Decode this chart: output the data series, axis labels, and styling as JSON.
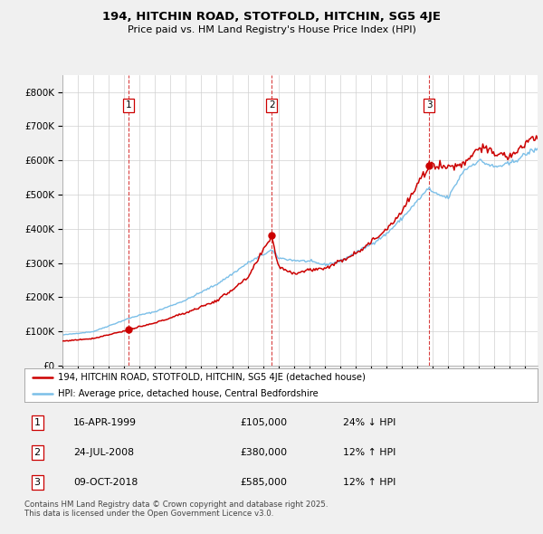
{
  "title": "194, HITCHIN ROAD, STOTFOLD, HITCHIN, SG5 4JE",
  "subtitle": "Price paid vs. HM Land Registry's House Price Index (HPI)",
  "legend_line1": "194, HITCHIN ROAD, STOTFOLD, HITCHIN, SG5 4JE (detached house)",
  "legend_line2": "HPI: Average price, detached house, Central Bedfordshire",
  "footer": "Contains HM Land Registry data © Crown copyright and database right 2025.\nThis data is licensed under the Open Government Licence v3.0.",
  "transactions": [
    {
      "num": 1,
      "date": "16-APR-1999",
      "price": 105000,
      "hpi_rel": "24% ↓ HPI",
      "year": 1999.29
    },
    {
      "num": 2,
      "date": "24-JUL-2008",
      "price": 380000,
      "hpi_rel": "12% ↑ HPI",
      "year": 2008.56
    },
    {
      "num": 3,
      "date": "09-OCT-2018",
      "price": 585000,
      "hpi_rel": "12% ↑ HPI",
      "year": 2018.77
    }
  ],
  "hpi_color": "#7bbfe8",
  "price_color": "#cc0000",
  "vline_color": "#cc0000",
  "background_color": "#f0f0f0",
  "plot_bg_color": "#ffffff",
  "ylim": [
    0,
    850000
  ],
  "xlim_start": 1995.0,
  "xlim_end": 2025.8,
  "hpi_anchors_t": [
    1995,
    1997,
    1999.29,
    2000,
    2001,
    2002,
    2003,
    2004,
    2005,
    2006,
    2007,
    2008.56,
    2009,
    2010,
    2011,
    2012,
    2013,
    2014,
    2015,
    2016,
    2017,
    2018.77,
    2019,
    2020,
    2020.5,
    2021,
    2022,
    2023,
    2024,
    2025.5
  ],
  "hpi_anchors_v": [
    90000,
    100000,
    138000,
    148000,
    158000,
    175000,
    192000,
    215000,
    238000,
    268000,
    300000,
    338000,
    315000,
    308000,
    305000,
    295000,
    305000,
    330000,
    355000,
    385000,
    430000,
    520000,
    505000,
    490000,
    530000,
    570000,
    600000,
    580000,
    590000,
    630000
  ],
  "red_anchors_t": [
    1995,
    1997,
    1999.29,
    2001,
    2003,
    2005,
    2007,
    2008.56,
    2009,
    2010,
    2011,
    2012,
    2013,
    2014,
    2015,
    2016,
    2017,
    2018.77,
    2019,
    2020,
    2021,
    2022,
    2023,
    2024,
    2025.5
  ],
  "red_anchors_v": [
    72000,
    80000,
    105000,
    125000,
    155000,
    190000,
    255000,
    380000,
    290000,
    270000,
    280000,
    285000,
    305000,
    330000,
    360000,
    400000,
    450000,
    585000,
    590000,
    580000,
    590000,
    640000,
    620000,
    610000,
    665000
  ],
  "hpi_noise_scale": 0.006,
  "red_noise_scale": 0.01,
  "hpi_seed": 42,
  "red_seed": 77
}
